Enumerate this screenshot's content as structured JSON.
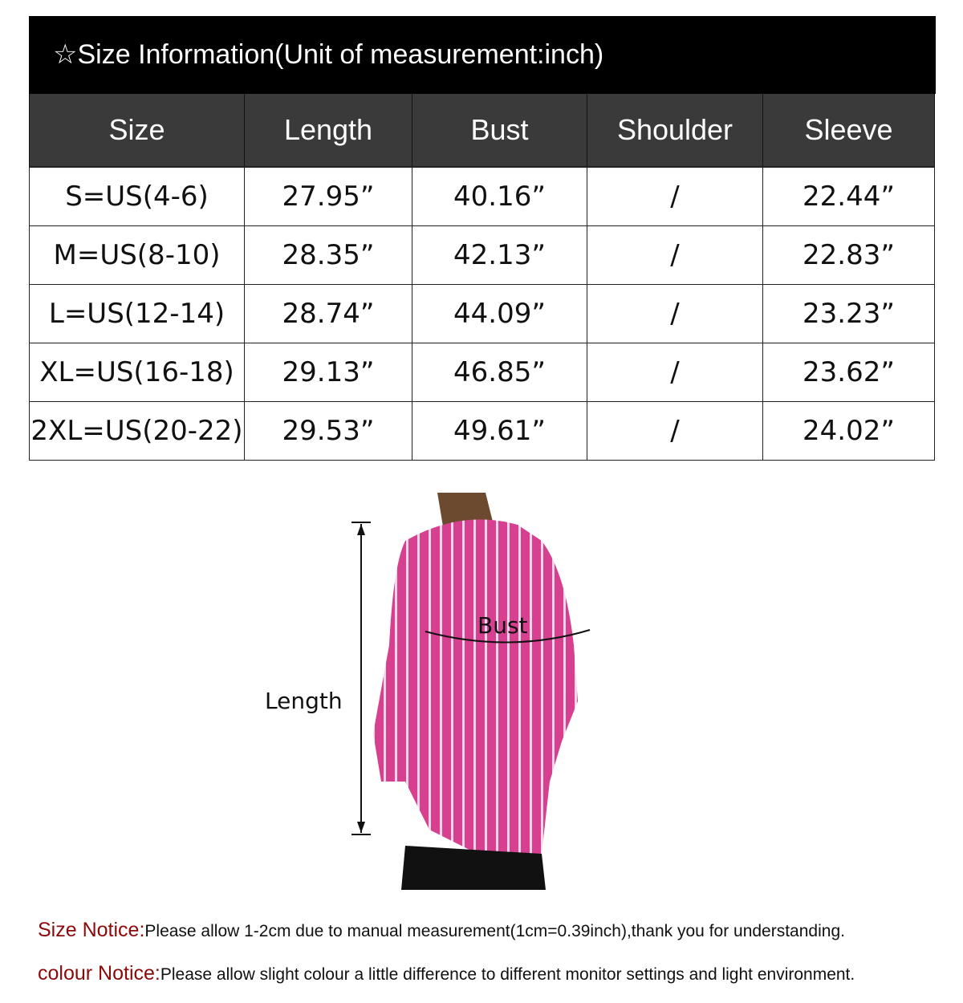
{
  "title": "☆Size Information(Unit of measurement:inch)",
  "table": {
    "headers": [
      "Size",
      "Length",
      "Bust",
      "Shoulder",
      "Sleeve"
    ],
    "rows": [
      [
        "S=US(4-6)",
        "27.95”",
        "40.16”",
        "/",
        "22.44”"
      ],
      [
        "M=US(8-10)",
        "28.35”",
        "42.13”",
        "/",
        "22.83”"
      ],
      [
        "L=US(12-14)",
        "28.74”",
        "44.09”",
        "/",
        "23.23”"
      ],
      [
        "XL=US(16-18)",
        "29.13”",
        "46.85”",
        "/",
        "23.62”"
      ],
      [
        "2XL=US(20-22)",
        "29.53”",
        "49.61”",
        "/",
        "24.02”"
      ]
    ]
  },
  "diagram": {
    "length_label": "Length",
    "bust_label": "Bust",
    "shirt_color": "#d6408f"
  },
  "notices": [
    {
      "label": "Size Notice:",
      "text": "Please allow 1-2cm due to manual measurement(1cm=0.39inch),thank you for understanding."
    },
    {
      "label": "colour Notice:",
      "text": "Please allow slight colour a little difference to different monitor settings and light environment."
    }
  ],
  "colors": {
    "header_bg": "#000000",
    "column_header_bg": "#3a3a3a",
    "notice_label": "#8b0a0a"
  }
}
